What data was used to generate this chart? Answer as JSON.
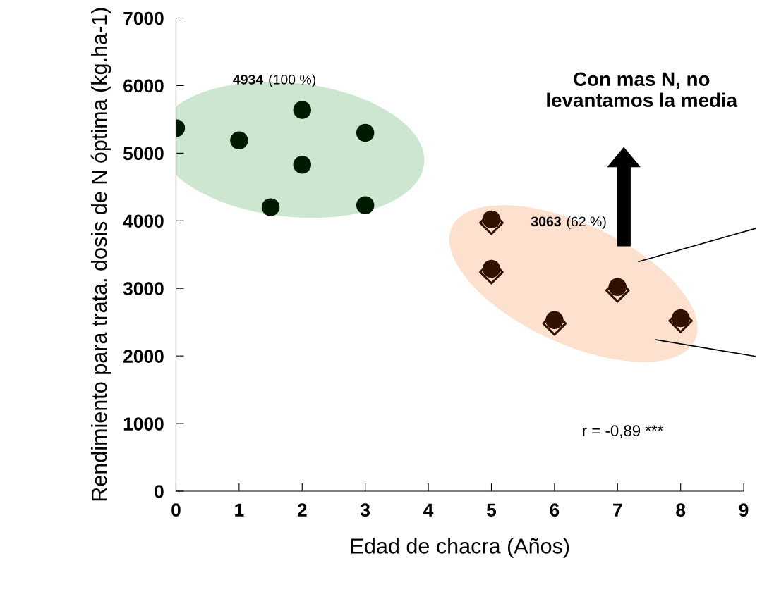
{
  "chart_data": {
    "type": "scatter",
    "xlabel": "Edad de chacra (Años)",
    "ylabel": "Rendimiento para trata. dosis de N óptima (kg.ha-1)",
    "xlim": [
      0,
      9
    ],
    "xticks": [
      0,
      1,
      2,
      3,
      4,
      5,
      6,
      7,
      8,
      9
    ],
    "ylim": [
      0,
      7000
    ],
    "yticks": [
      0,
      1000,
      2000,
      3000,
      4000,
      5000,
      6000,
      7000
    ],
    "grid": false,
    "legend": false,
    "series": [
      {
        "color": "#001a00",
        "marker": "circle",
        "x": [
          0,
          1,
          2,
          2,
          1.5,
          3,
          3
        ],
        "values": [
          5370,
          5190,
          5640,
          4830,
          4200,
          5300,
          4230
        ]
      },
      {
        "color": "#331100",
        "marker": "diamond",
        "x": [
          5,
          5,
          6,
          7,
          8
        ],
        "values": [
          3970,
          3240,
          2480,
          2970,
          2520
        ]
      },
      {
        "color": "#331100",
        "marker": "circle",
        "x": [
          5,
          5,
          6,
          7,
          8
        ],
        "values": [
          4020,
          3290,
          2530,
          3020,
          2560
        ]
      }
    ],
    "annotations": [
      "4934 (100 %)",
      "3063 (62 %)",
      "Con mas N, no levantamos la media",
      "r = -0,89 ***"
    ]
  }
}
